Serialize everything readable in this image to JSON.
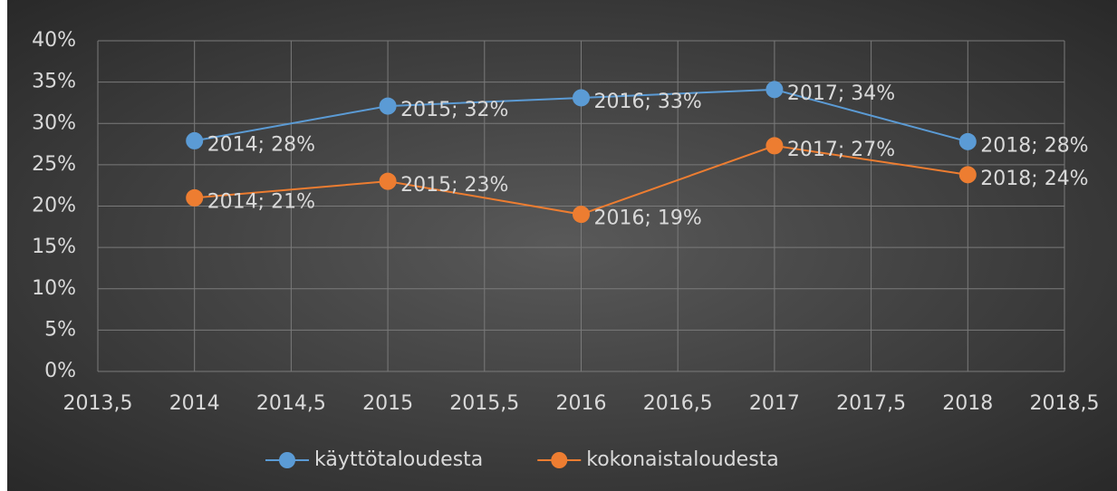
{
  "chart_data": {
    "type": "line",
    "x": [
      2014,
      2015,
      2016,
      2017,
      2018
    ],
    "series": [
      {
        "name": "käyttötaloudesta",
        "color": "#5b9bd5",
        "values": [
          27.9,
          32.1,
          33.1,
          34.1,
          27.8
        ],
        "value_labels": [
          "2014; 28%",
          "2015; 32%",
          "2016; 33%",
          "2017; 34%",
          "2018; 28%"
        ]
      },
      {
        "name": "kokonaistaloudesta",
        "color": "#ed7d31",
        "values": [
          21,
          23,
          19,
          27.3,
          23.8
        ],
        "value_labels": [
          "2014; 21%",
          "2015; 23%",
          "2016; 19%",
          "2017; 27%",
          "2018; 24%"
        ]
      }
    ],
    "xlim": [
      2013.5,
      2018.5
    ],
    "xticks": [
      {
        "value": 2013.5,
        "label": "2013,5"
      },
      2014,
      {
        "value": 2014.5,
        "label": "2014,5"
      },
      2015,
      {
        "value": 2015.5,
        "label": "2015,5"
      },
      2016,
      {
        "value": 2016.5,
        "label": "2016,5"
      },
      2017,
      {
        "value": 2017.5,
        "label": "2017,5"
      },
      2018,
      {
        "value": 2018.5,
        "label": "2018,5"
      }
    ],
    "ylim": [
      0,
      40
    ],
    "yticks": [
      {
        "value": 0,
        "label": "0%"
      },
      {
        "value": 5,
        "label": "5%"
      },
      {
        "value": 10,
        "label": "10%"
      },
      {
        "value": 15,
        "label": "15%"
      },
      {
        "value": 20,
        "label": "20%"
      },
      {
        "value": 25,
        "label": "25%"
      },
      {
        "value": 30,
        "label": "30%"
      },
      {
        "value": 35,
        "label": "35%"
      },
      {
        "value": 40,
        "label": "40%"
      }
    ],
    "grid": true,
    "legend": "bottom"
  }
}
